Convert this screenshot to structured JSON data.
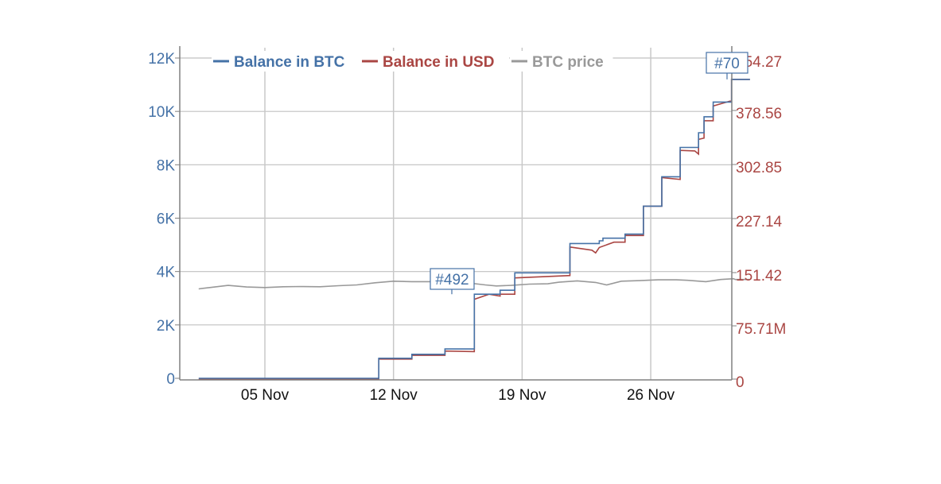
{
  "chart_data": {
    "type": "line",
    "title": "",
    "xlabel": "",
    "ylabel": "",
    "x_ticks": [
      "05 Nov",
      "12 Nov",
      "19 Nov",
      "26 Nov"
    ],
    "x_range_days": [
      0.4,
      30.4
    ],
    "x_day_offset_note": "day 0 = 01 Nov",
    "y_left": {
      "label": "Balance in BTC",
      "ticks": [
        "0",
        "2K",
        "4K",
        "6K",
        "8K",
        "10K",
        "12K"
      ],
      "tick_values": [
        0,
        2000,
        4000,
        6000,
        8000,
        10000,
        12000
      ],
      "range": [
        -150,
        12400
      ],
      "color": "#4572a7"
    },
    "y_right": {
      "label": "Balance in USD",
      "ticks": [
        "0",
        "75.71M",
        "151.42",
        "227.14",
        "302.85",
        "378.56",
        "454.27"
      ],
      "ticks_visible_text": [
        "0",
        "75.71M",
        "151.42",
        "227.14",
        "302.85",
        "378.56",
        "54.27"
      ],
      "color": "#aa4643"
    },
    "legend": [
      {
        "name": "Balance in BTC",
        "color": "#4572a7"
      },
      {
        "name": "Balance in USD",
        "color": "#aa4643"
      },
      {
        "name": "BTC price",
        "color": "#999999"
      }
    ],
    "legend_position": "top",
    "grid": true,
    "series": [
      {
        "name": "Balance in BTC",
        "color": "#4572a7",
        "step": true,
        "points": [
          [
            0.4,
            0
          ],
          [
            10.2,
            0
          ],
          [
            10.2,
            750
          ],
          [
            12.0,
            750
          ],
          [
            12.0,
            900
          ],
          [
            13.8,
            900
          ],
          [
            13.8,
            1100
          ],
          [
            15.4,
            1100
          ],
          [
            15.4,
            3150
          ],
          [
            16.8,
            3150
          ],
          [
            16.8,
            3300
          ],
          [
            17.6,
            3300
          ],
          [
            17.6,
            3950
          ],
          [
            20.6,
            3950
          ],
          [
            20.6,
            5050
          ],
          [
            22.2,
            5050
          ],
          [
            22.2,
            5150
          ],
          [
            22.4,
            5150
          ],
          [
            22.4,
            5250
          ],
          [
            23.6,
            5250
          ],
          [
            23.6,
            5400
          ],
          [
            24.6,
            5400
          ],
          [
            24.6,
            6450
          ],
          [
            25.6,
            6450
          ],
          [
            25.6,
            7550
          ],
          [
            26.6,
            7550
          ],
          [
            26.6,
            8650
          ],
          [
            27.6,
            8650
          ],
          [
            27.6,
            9200
          ],
          [
            27.9,
            9200
          ],
          [
            27.9,
            9800
          ],
          [
            28.4,
            9800
          ],
          [
            28.4,
            10350
          ],
          [
            29.4,
            10350
          ],
          [
            29.4,
            11200
          ],
          [
            30.4,
            11200
          ]
        ]
      },
      {
        "name": "Balance in USD",
        "color": "#aa4643",
        "step": false,
        "points": [
          [
            0.4,
            -30
          ],
          [
            10.2,
            -30
          ],
          [
            10.2,
            720
          ],
          [
            12.0,
            720
          ],
          [
            12.0,
            860
          ],
          [
            13.8,
            860
          ],
          [
            13.8,
            1020
          ],
          [
            15.4,
            1000
          ],
          [
            15.4,
            2960
          ],
          [
            16.2,
            3150
          ],
          [
            16.8,
            3080
          ],
          [
            16.8,
            3150
          ],
          [
            17.6,
            3150
          ],
          [
            17.6,
            3760
          ],
          [
            20.6,
            3850
          ],
          [
            20.6,
            4920
          ],
          [
            21.8,
            4800
          ],
          [
            22.0,
            4700
          ],
          [
            22.2,
            4900
          ],
          [
            23.0,
            5100
          ],
          [
            23.6,
            5100
          ],
          [
            23.6,
            5350
          ],
          [
            24.6,
            5350
          ],
          [
            24.6,
            6450
          ],
          [
            25.6,
            6450
          ],
          [
            25.6,
            7520
          ],
          [
            26.6,
            7450
          ],
          [
            26.6,
            8540
          ],
          [
            27.4,
            8520
          ],
          [
            27.6,
            8400
          ],
          [
            27.6,
            8950
          ],
          [
            27.9,
            9000
          ],
          [
            27.9,
            9650
          ],
          [
            28.4,
            9650
          ],
          [
            28.4,
            10200
          ],
          [
            29.4,
            10400
          ],
          [
            29.4,
            11200
          ],
          [
            30.4,
            11200
          ]
        ]
      },
      {
        "name": "BTC price",
        "color": "#999999",
        "step": false,
        "points": [
          [
            0.4,
            3350
          ],
          [
            1.0,
            3400
          ],
          [
            2.0,
            3480
          ],
          [
            3.0,
            3420
          ],
          [
            4.0,
            3400
          ],
          [
            5.0,
            3430
          ],
          [
            6.0,
            3440
          ],
          [
            7.0,
            3430
          ],
          [
            8.0,
            3470
          ],
          [
            9.0,
            3500
          ],
          [
            10.0,
            3580
          ],
          [
            11.0,
            3640
          ],
          [
            12.0,
            3620
          ],
          [
            13.0,
            3620
          ],
          [
            14.0,
            3590
          ],
          [
            15.0,
            3580
          ],
          [
            16.0,
            3500
          ],
          [
            16.6,
            3460
          ],
          [
            17.4,
            3480
          ],
          [
            18.4,
            3530
          ],
          [
            19.4,
            3540
          ],
          [
            20.0,
            3600
          ],
          [
            21.0,
            3650
          ],
          [
            22.0,
            3590
          ],
          [
            22.6,
            3500
          ],
          [
            23.4,
            3640
          ],
          [
            24.4,
            3660
          ],
          [
            25.4,
            3690
          ],
          [
            26.4,
            3690
          ],
          [
            27.0,
            3670
          ],
          [
            28.0,
            3620
          ],
          [
            28.8,
            3700
          ],
          [
            29.5,
            3730
          ],
          [
            29.6,
            3700
          ],
          [
            30.4,
            3700
          ]
        ]
      }
    ],
    "annotations": [
      {
        "label": "#492",
        "x_day": 15.4,
        "y": 3150,
        "series": "Balance in BTC"
      },
      {
        "label": "#70",
        "x_day": 29.9,
        "y": 11200,
        "series": "Balance in BTC"
      }
    ]
  }
}
